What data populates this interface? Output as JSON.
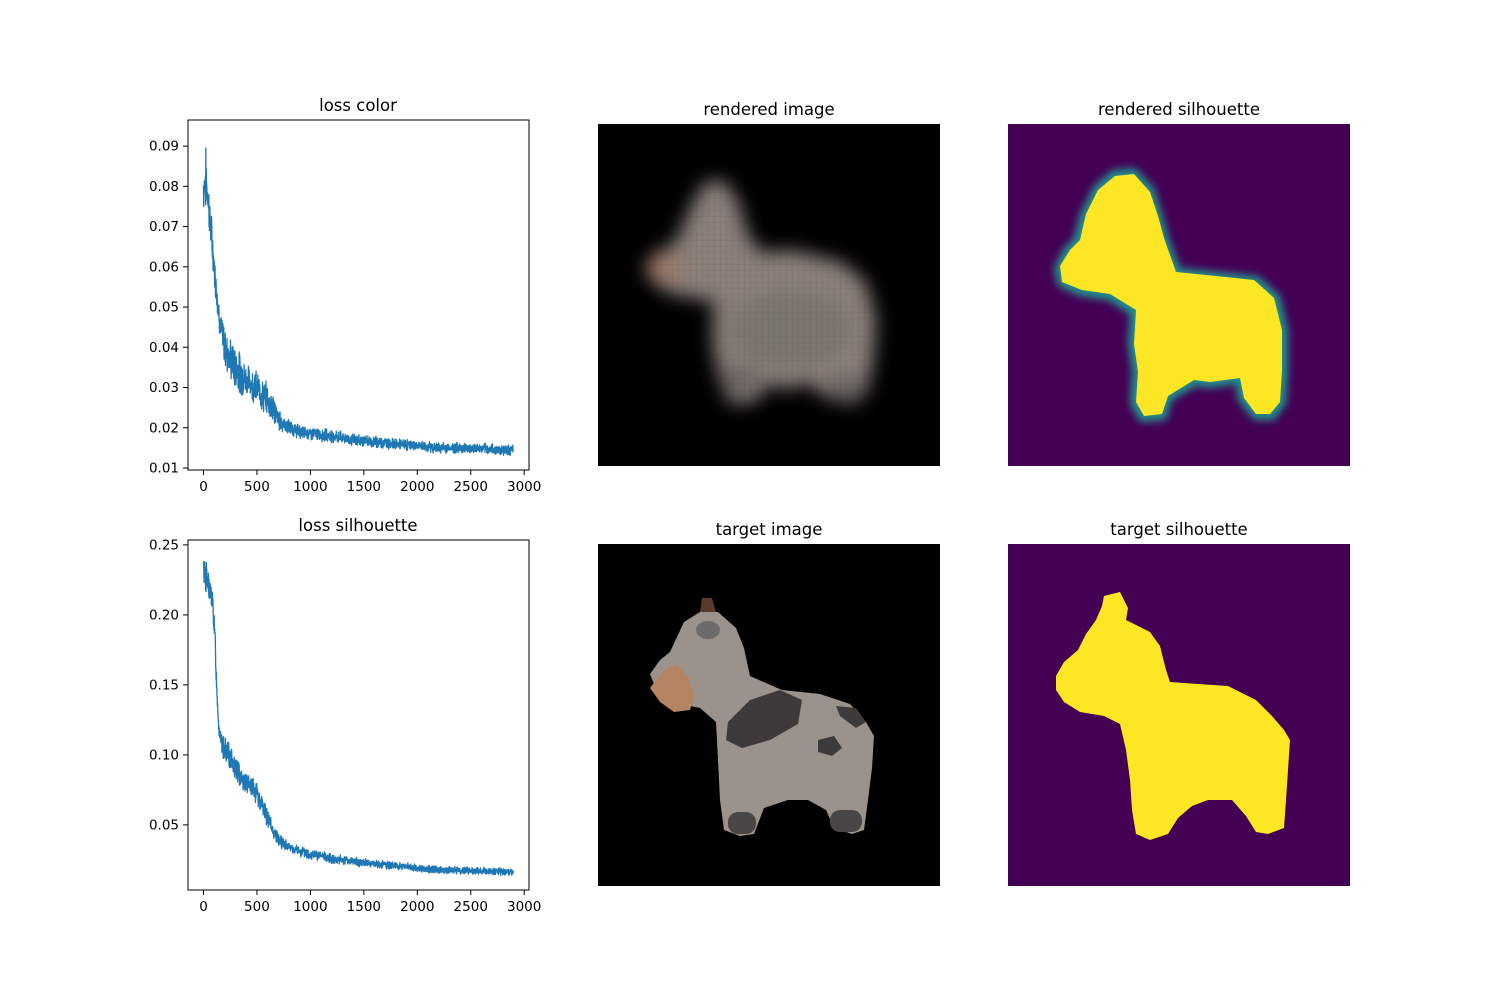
{
  "figure": {
    "panels": {
      "loss_color_title": "loss color",
      "rendered_image_title": "rendered image",
      "rendered_silhouette_title": "rendered silhouette",
      "loss_silhouette_title": "loss silhouette",
      "target_image_title": "target image",
      "target_silhouette_title": "target silhouette"
    }
  },
  "colors": {
    "line": "#1f77b4",
    "silhouette_bg": "#440154",
    "silhouette_fg": "#fde725",
    "image_bg": "#000000"
  },
  "chart_data": [
    {
      "type": "line",
      "title": "loss color",
      "xlabel": "",
      "ylabel": "",
      "xlim": [
        -145,
        3045
      ],
      "ylim": [
        0.0095,
        0.0965
      ],
      "xticks": [
        0,
        500,
        1000,
        1500,
        2000,
        2500,
        3000
      ],
      "yticks": [
        0.01,
        0.02,
        0.03,
        0.04,
        0.05,
        0.06,
        0.07,
        0.08,
        0.09
      ],
      "ytick_labels": [
        "0.01",
        "0.02",
        "0.03",
        "0.04",
        "0.05",
        "0.06",
        "0.07",
        "0.08",
        "0.09"
      ],
      "grid": false,
      "legend": "none",
      "n_points": 2900,
      "series": [
        {
          "x": [
            0,
            20,
            40,
            60,
            80,
            100,
            130,
            160,
            200,
            250,
            300,
            350,
            400,
            450,
            500,
            550,
            600,
            650,
            700,
            800,
            900,
            1000,
            1200,
            1400,
            1600,
            1800,
            2000,
            2200,
            2400,
            2600,
            2800,
            2900
          ],
          "y": [
            0.08,
            0.082,
            0.078,
            0.072,
            0.066,
            0.06,
            0.052,
            0.045,
            0.04,
            0.037,
            0.035,
            0.033,
            0.032,
            0.031,
            0.03,
            0.028,
            0.027,
            0.025,
            0.022,
            0.02,
            0.019,
            0.0185,
            0.018,
            0.017,
            0.0165,
            0.016,
            0.0155,
            0.015,
            0.015,
            0.0148,
            0.0145,
            0.0145
          ],
          "noise_amplitude": [
            0.005,
            0.006,
            0.005,
            0.004,
            0.004,
            0.003,
            0.003,
            0.003,
            0.004,
            0.004,
            0.004,
            0.004,
            0.003,
            0.003,
            0.003,
            0.003,
            0.003,
            0.003,
            0.002,
            0.0015,
            0.0013,
            0.0012,
            0.0012,
            0.0011,
            0.0011,
            0.001,
            0.001,
            0.001,
            0.001,
            0.001,
            0.001,
            0.001
          ]
        }
      ]
    },
    {
      "type": "line",
      "title": "loss silhouette",
      "xlabel": "",
      "ylabel": "",
      "xlim": [
        -145,
        3045
      ],
      "ylim": [
        0.0035,
        0.2535
      ],
      "xticks": [
        0,
        500,
        1000,
        1500,
        2000,
        2500,
        3000
      ],
      "yticks": [
        0.05,
        0.1,
        0.15,
        0.2,
        0.25
      ],
      "ytick_labels": [
        "0.05",
        "0.10",
        "0.15",
        "0.20",
        "0.25"
      ],
      "grid": false,
      "legend": "none",
      "n_points": 2900,
      "series": [
        {
          "x": [
            0,
            30,
            60,
            90,
            110,
            120,
            140,
            160,
            200,
            250,
            300,
            350,
            400,
            450,
            500,
            550,
            600,
            650,
            700,
            800,
            900,
            1000,
            1200,
            1400,
            1600,
            1800,
            2000,
            2200,
            2400,
            2600,
            2800,
            2900
          ],
          "y": [
            0.232,
            0.226,
            0.218,
            0.205,
            0.18,
            0.155,
            0.125,
            0.11,
            0.103,
            0.097,
            0.09,
            0.085,
            0.08,
            0.076,
            0.072,
            0.064,
            0.055,
            0.046,
            0.039,
            0.034,
            0.031,
            0.029,
            0.026,
            0.024,
            0.022,
            0.021,
            0.019,
            0.018,
            0.0175,
            0.017,
            0.0165,
            0.0165
          ],
          "noise_amplitude": [
            0.008,
            0.009,
            0.008,
            0.007,
            0.006,
            0.006,
            0.006,
            0.006,
            0.007,
            0.007,
            0.007,
            0.007,
            0.007,
            0.006,
            0.006,
            0.005,
            0.005,
            0.004,
            0.004,
            0.003,
            0.003,
            0.0028,
            0.0025,
            0.0024,
            0.0022,
            0.002,
            0.002,
            0.002,
            0.002,
            0.002,
            0.002,
            0.002
          ]
        }
      ]
    }
  ]
}
